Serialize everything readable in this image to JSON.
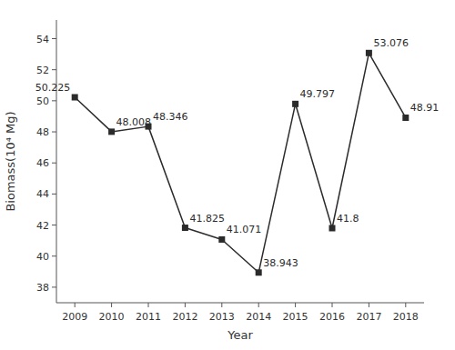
{
  "chart_data": {
    "type": "line",
    "x": [
      2009,
      2010,
      2011,
      2012,
      2013,
      2014,
      2015,
      2016,
      2017,
      2018
    ],
    "values": [
      50.225,
      48.008,
      48.346,
      41.825,
      41.071,
      38.943,
      49.797,
      41.8,
      53.076,
      48.91
    ],
    "x_label": "Year",
    "y_label": "Biomass(10⁴ Mg)",
    "xlim": [
      2008.5,
      2018.5
    ],
    "xticks": [
      2009,
      2010,
      2011,
      2012,
      2013,
      2014,
      2015,
      2016,
      2017,
      2018
    ],
    "ylim": [
      37.0,
      55.2
    ],
    "yticks": [
      38,
      40,
      42,
      44,
      46,
      48,
      50,
      52,
      54
    ],
    "color": "#2b2b2b",
    "marker": "square",
    "line_style": "solid",
    "data_labels": true,
    "grid": false
  }
}
